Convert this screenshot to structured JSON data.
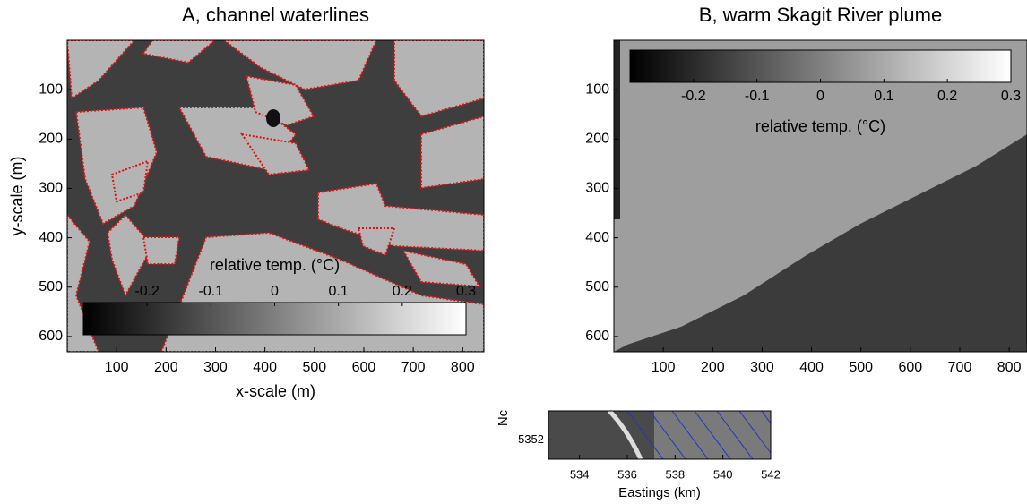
{
  "chart_data": [
    {
      "type": "image",
      "title": "A, channel waterlines",
      "xlabel": "x-scale (m)",
      "ylabel": "y-scale (m)",
      "xlim": [
        0,
        843
      ],
      "xticks": [
        100,
        200,
        300,
        400,
        500,
        600,
        700,
        800
      ],
      "ylim": [
        0,
        631
      ],
      "yticks": [
        100,
        200,
        300,
        400,
        500,
        600
      ],
      "y_inverted": true,
      "colorbar": {
        "label": "relative temp. (°C)",
        "lim": [
          -0.3,
          0.3
        ],
        "ticks": [
          -0.2,
          -0.1,
          0,
          0.1,
          0.2,
          0.3
        ]
      }
    },
    {
      "type": "image",
      "title": "B, warm Skagit River plume",
      "xlim": [
        0,
        836
      ],
      "xticks": [
        100,
        200,
        300,
        400,
        500,
        600,
        700,
        800
      ],
      "ylim": [
        0,
        631
      ],
      "yticks": [
        100,
        200,
        300,
        400,
        500,
        600
      ],
      "y_inverted": true,
      "colorbar": {
        "label": "relative temp. (°C)",
        "lim": [
          -0.3,
          0.3
        ],
        "ticks": [
          -0.2,
          -0.1,
          0,
          0.1,
          0.2,
          0.3
        ]
      }
    },
    {
      "type": "image",
      "xlabel": "Eastings (km)",
      "ylabel": "Nc",
      "xlim": [
        532.7,
        542
      ],
      "xticks": [
        534,
        536,
        538,
        540,
        542
      ],
      "ylim": [
        5351.2,
        5353.2
      ],
      "yticks": [
        5352
      ]
    }
  ]
}
